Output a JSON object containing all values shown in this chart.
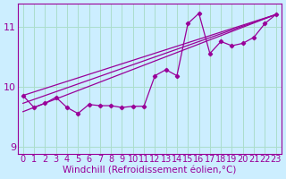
{
  "xlabel": "Windchill (Refroidissement éolien,°C)",
  "ylabel": "",
  "bg_color": "#cceeff",
  "plot_bg_color": "#cceeff",
  "grid_color": "#aaddcc",
  "line_color": "#990099",
  "xlim": [
    -0.5,
    23.5
  ],
  "ylim": [
    8.88,
    11.38
  ],
  "yticks": [
    9,
    10,
    11
  ],
  "xticks": [
    0,
    1,
    2,
    3,
    4,
    5,
    6,
    7,
    8,
    9,
    10,
    11,
    12,
    13,
    14,
    15,
    16,
    17,
    18,
    19,
    20,
    21,
    22,
    23
  ],
  "series1_x": [
    0,
    1,
    2,
    3,
    4,
    5,
    6,
    7,
    8,
    9,
    10,
    11,
    12,
    13,
    14,
    15,
    16,
    17,
    18,
    19,
    20,
    21,
    22,
    23
  ],
  "series1_y": [
    9.85,
    9.65,
    9.72,
    9.82,
    9.65,
    9.55,
    9.7,
    9.68,
    9.68,
    9.65,
    9.67,
    9.67,
    10.18,
    10.28,
    10.18,
    11.05,
    11.22,
    10.55,
    10.75,
    10.68,
    10.72,
    10.82,
    11.05,
    11.2
  ],
  "series2_x": [
    0,
    23
  ],
  "series2_y": [
    9.58,
    11.2
  ],
  "series3_x": [
    0,
    23
  ],
  "series3_y": [
    9.72,
    11.2
  ],
  "series4_x": [
    0,
    23
  ],
  "series4_y": [
    9.85,
    11.2
  ],
  "tick_fontsize": 7,
  "xlabel_fontsize": 7.5
}
